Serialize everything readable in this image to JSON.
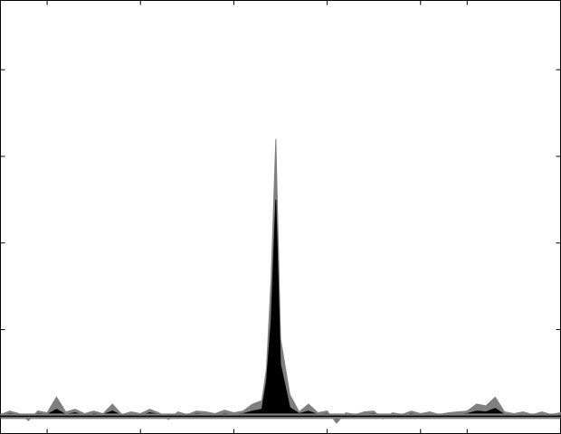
{
  "chart_data": {
    "type": "area",
    "title": "",
    "xlabel": "",
    "ylabel": "",
    "xlim": [
      0,
      120
    ],
    "ylim": [
      -0.2,
      4.8
    ],
    "x_ticks": [
      10,
      30,
      50,
      70,
      90,
      100
    ],
    "y_ticks": [
      0,
      1,
      2,
      3,
      4
    ],
    "grid": false,
    "legend": "none",
    "baseline": 0,
    "x": [
      0,
      2,
      4,
      6,
      8,
      10,
      12,
      14,
      16,
      18,
      20,
      22,
      24,
      26,
      28,
      30,
      32,
      34,
      36,
      38,
      40,
      42,
      44,
      46,
      48,
      50,
      52,
      54,
      56,
      57,
      58,
      59,
      60,
      62,
      64,
      66,
      68,
      70,
      72,
      74,
      76,
      78,
      80,
      82,
      84,
      86,
      88,
      90,
      92,
      94,
      96,
      98,
      100,
      102,
      104,
      106,
      108,
      110,
      112,
      114,
      116,
      118,
      120
    ],
    "series": [
      {
        "values": [
          0.02,
          0.06,
          0.03,
          -0.05,
          0.06,
          0.04,
          0.22,
          0.05,
          0.08,
          0.03,
          0.06,
          0.03,
          0.14,
          0.02,
          0.05,
          0.03,
          0.08,
          0.04,
          -0.04,
          0.05,
          0.02,
          0.06,
          0.05,
          0.03,
          0.07,
          0.04,
          0.06,
          0.14,
          0.18,
          0.55,
          1.6,
          3.2,
          0.9,
          0.25,
          0.05,
          0.14,
          0.04,
          0.06,
          -0.08,
          0.04,
          0.02,
          0.05,
          0.06,
          -0.03,
          0.04,
          0.02,
          0.06,
          0.03,
          0.05,
          0.02,
          0.04,
          0.05,
          0.06,
          0.14,
          0.12,
          0.22,
          0.05,
          0.03,
          0.05,
          0.02,
          0.05,
          0.02,
          0.04
        ],
        "color": "#7f7f7f"
      },
      {
        "values": [
          0.01,
          0.03,
          0.02,
          -0.02,
          0.03,
          0.02,
          0.08,
          0.02,
          0.04,
          0.01,
          0.03,
          0.02,
          0.06,
          0.01,
          0.02,
          0.01,
          0.04,
          0.02,
          -0.02,
          0.02,
          0.01,
          0.03,
          0.02,
          0.01,
          0.03,
          0.02,
          0.03,
          0.06,
          0.08,
          0.4,
          1.1,
          2.5,
          0.6,
          0.1,
          0.03,
          0.06,
          0.02,
          0.03,
          -0.03,
          0.02,
          0.01,
          0.02,
          0.03,
          -0.01,
          0.02,
          0.01,
          0.03,
          0.01,
          0.02,
          0.01,
          0.02,
          0.02,
          0.03,
          0.06,
          0.05,
          0.09,
          0.02,
          0.01,
          0.02,
          0.01,
          0.02,
          0.01,
          0.02
        ],
        "color": "#000000"
      }
    ]
  }
}
